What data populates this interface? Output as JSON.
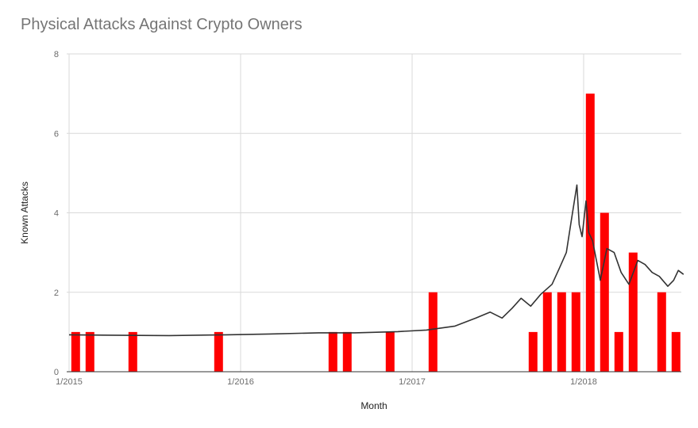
{
  "chart_data": {
    "type": "bar",
    "title": "Physical Attacks Against Crypto Owners",
    "xlabel": "Month",
    "ylabel": "Known Attacks",
    "ylim": [
      0,
      8
    ],
    "y_ticks": [
      0,
      2,
      4,
      6,
      8
    ],
    "x_ticks": [
      "1/2015",
      "1/2016",
      "1/2017",
      "1/2018"
    ],
    "grid": true,
    "colors": {
      "bars": "#ff0000",
      "line": "#333333",
      "grid": "#d9d9d9",
      "axis": "#333333"
    },
    "series": [
      {
        "values": [
          {
            "x": "2015-01",
            "y": 1
          },
          {
            "x": "2015-02",
            "y": 1
          },
          {
            "x": "2015-05",
            "y": 1
          },
          {
            "x": "2015-11",
            "y": 1
          },
          {
            "x": "2016-07",
            "y": 1
          },
          {
            "x": "2016-08",
            "y": 1
          },
          {
            "x": "2016-11",
            "y": 1
          },
          {
            "x": "2017-02",
            "y": 2
          },
          {
            "x": "2017-09",
            "y": 1
          },
          {
            "x": "2017-10",
            "y": 2
          },
          {
            "x": "2017-11",
            "y": 2
          },
          {
            "x": "2017-12",
            "y": 2
          },
          {
            "x": "2018-01",
            "y": 7
          },
          {
            "x": "2018-02",
            "y": 4
          },
          {
            "x": "2018-03",
            "y": 1
          },
          {
            "x": "2018-04",
            "y": 3
          },
          {
            "x": "2018-06",
            "y": 2
          },
          {
            "x": "2018-07",
            "y": 1
          }
        ]
      },
      {
        "type": "line",
        "values": [
          {
            "x": "2015-01-01",
            "y": 0.93
          },
          {
            "x": "2015-04-01",
            "y": 0.92
          },
          {
            "x": "2015-08-01",
            "y": 0.91
          },
          {
            "x": "2015-12-01",
            "y": 0.93
          },
          {
            "x": "2016-03-01",
            "y": 0.95
          },
          {
            "x": "2016-06-15",
            "y": 0.98
          },
          {
            "x": "2016-09-01",
            "y": 0.98
          },
          {
            "x": "2016-12-01",
            "y": 1.01
          },
          {
            "x": "2017-02-01",
            "y": 1.05
          },
          {
            "x": "2017-04-01",
            "y": 1.15
          },
          {
            "x": "2017-05-15",
            "y": 1.35
          },
          {
            "x": "2017-06-15",
            "y": 1.5
          },
          {
            "x": "2017-07-10",
            "y": 1.35
          },
          {
            "x": "2017-08-01",
            "y": 1.6
          },
          {
            "x": "2017-08-20",
            "y": 1.85
          },
          {
            "x": "2017-09-10",
            "y": 1.65
          },
          {
            "x": "2017-10-01",
            "y": 1.95
          },
          {
            "x": "2017-10-25",
            "y": 2.2
          },
          {
            "x": "2017-11-10",
            "y": 2.6
          },
          {
            "x": "2017-11-25",
            "y": 3.0
          },
          {
            "x": "2017-12-05",
            "y": 3.8
          },
          {
            "x": "2017-12-17",
            "y": 4.7
          },
          {
            "x": "2017-12-22",
            "y": 3.7
          },
          {
            "x": "2017-12-28",
            "y": 3.4
          },
          {
            "x": "2018-01-06",
            "y": 4.3
          },
          {
            "x": "2018-01-12",
            "y": 3.5
          },
          {
            "x": "2018-01-20",
            "y": 3.3
          },
          {
            "x": "2018-02-06",
            "y": 2.3
          },
          {
            "x": "2018-02-20",
            "y": 3.1
          },
          {
            "x": "2018-03-05",
            "y": 3.0
          },
          {
            "x": "2018-03-20",
            "y": 2.5
          },
          {
            "x": "2018-04-06",
            "y": 2.2
          },
          {
            "x": "2018-04-25",
            "y": 2.8
          },
          {
            "x": "2018-05-10",
            "y": 2.7
          },
          {
            "x": "2018-05-25",
            "y": 2.5
          },
          {
            "x": "2018-06-10",
            "y": 2.4
          },
          {
            "x": "2018-06-28",
            "y": 2.15
          },
          {
            "x": "2018-07-10",
            "y": 2.3
          },
          {
            "x": "2018-07-20",
            "y": 2.55
          },
          {
            "x": "2018-07-31",
            "y": 2.45
          }
        ]
      }
    ]
  }
}
